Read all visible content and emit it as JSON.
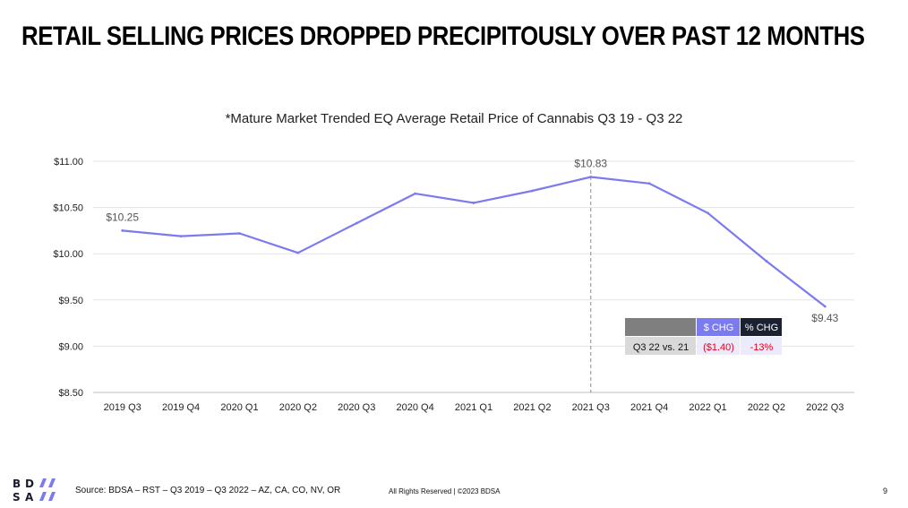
{
  "headline": "RETAIL SELLING PRICES DROPPED PRECIPITOUSLY OVER PAST 12 MONTHS",
  "footer": {
    "source": "Source:  BDSA – RST – Q3 2019 – Q3 2022 – AZ, CA, CO, NV, OR",
    "rights": "All Rights Reserved | ©2023 BDSA",
    "page": "9"
  },
  "logo": {
    "letters": [
      "B",
      "D",
      "S",
      "A"
    ],
    "accent_color": "#7b7bef"
  },
  "chart_data": {
    "type": "line",
    "title": "*Mature Market Trended EQ Average Retail Price of Cannabis Q3 19 - Q3 22",
    "categories": [
      "2019 Q3",
      "2019 Q4",
      "2020 Q1",
      "2020 Q2",
      "2020 Q3",
      "2020 Q4",
      "2021 Q1",
      "2021 Q2",
      "2021 Q3",
      "2021 Q4",
      "2022 Q1",
      "2022 Q2",
      "2022 Q3"
    ],
    "series": [
      {
        "values": [
          10.25,
          10.19,
          10.22,
          10.01,
          10.33,
          10.65,
          10.55,
          10.68,
          10.83,
          10.76,
          10.44,
          9.92,
          9.43
        ],
        "color": "#7b7bef"
      }
    ],
    "ylim": [
      8.5,
      11.0
    ],
    "yticks": [
      8.5,
      9.0,
      9.5,
      10.0,
      10.5,
      11.0
    ],
    "ytick_labels": [
      "$8.50",
      "$9.00",
      "$9.50",
      "$10.00",
      "$10.50",
      "$11.00"
    ],
    "grid": true,
    "reference_line": {
      "category": "2021 Q3"
    },
    "annotations": [
      {
        "category": "2019 Q3",
        "text": "$10.25"
      },
      {
        "category": "2021 Q3",
        "text": "$10.83"
      },
      {
        "category": "2022 Q3",
        "text": "$9.43"
      }
    ],
    "summary_table": {
      "headers": [
        "",
        "$ CHG",
        "% CHG"
      ],
      "row": [
        "Q3 22 vs. 21",
        "($1.40)",
        "-13%"
      ],
      "header_colors": [
        "#7f7f7f",
        "#7b7bef",
        "#1a2130"
      ],
      "row_label_bg": "#d9d9d9",
      "row_value_bg": "#ecebfc",
      "negative_color": "#e0001b"
    }
  }
}
